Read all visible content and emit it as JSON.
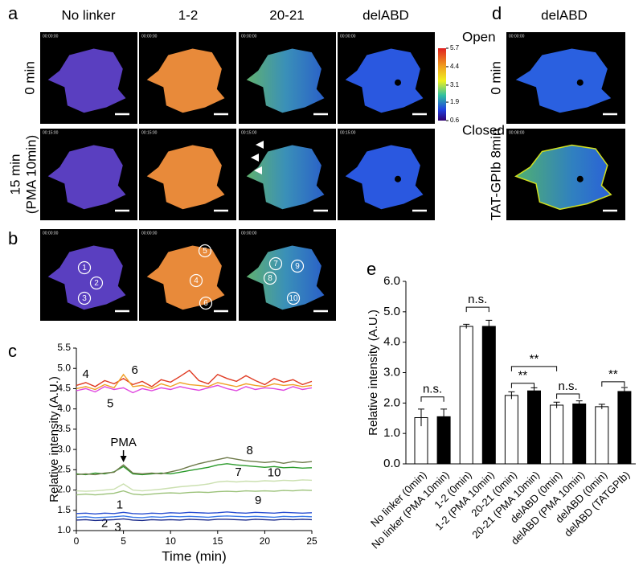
{
  "figure": {
    "panel_letters": [
      "a",
      "b",
      "c",
      "d",
      "e"
    ],
    "a": {
      "columns": [
        "No linker",
        "1-2",
        "20-21",
        "delABD"
      ],
      "rows": [
        "0 min",
        "15 min",
        "(PMA 10min)"
      ]
    },
    "colorbar": {
      "lim": [
        0.6,
        5.7
      ],
      "ticks": [
        5.7,
        4.4,
        3.1,
        1.9,
        0.6
      ],
      "top_label": "Open",
      "bottom_label": "Closed"
    },
    "d": {
      "column": "delABD",
      "rows": [
        "0 min",
        "TAT-GPIb 8min"
      ]
    },
    "timestamps": [
      "00:00:00",
      "00:00:00",
      "00:00:00",
      "00:00:00",
      "00:15:00",
      "00:15:00",
      "00:15:00",
      "00:15:00",
      "00:00:00",
      "00:00:00",
      "00:00:00",
      "00:00:00",
      "00:08:00"
    ]
  },
  "chart_data": [
    {
      "type": "line",
      "xlabel": "Time (min)",
      "ylabel": "Relative intensity (A.U.)",
      "x": [
        0,
        1,
        2,
        3,
        4,
        5,
        6,
        7,
        8,
        9,
        10,
        11,
        12,
        13,
        14,
        15,
        16,
        17,
        18,
        19,
        20,
        21,
        22,
        23,
        24,
        25
      ],
      "xlim": [
        0,
        25
      ],
      "xticks": [
        0,
        5,
        10,
        15,
        20,
        25
      ],
      "ylim": [
        1,
        5.5
      ],
      "yticks": [
        {
          "value": 1,
          "label": "1.0"
        },
        {
          "value": 1.5,
          "label": "1.5"
        },
        {
          "value": 2,
          "label": "2.0"
        },
        {
          "value": 2.5,
          "label": "2.5"
        },
        {
          "value": 3,
          "label": "3.0"
        },
        {
          "value": 3.5,
          "label": "3.5"
        },
        {
          "value": 4,
          "label": "4.0"
        },
        {
          "value": 4.5,
          "label": "4.5"
        },
        {
          "value": 5,
          "label": "5.0"
        },
        {
          "value": 5.5,
          "label": "5.5"
        }
      ],
      "annotations": [
        "PMA"
      ],
      "series": [
        {
          "name": "1",
          "color": "#2a4fd0",
          "values": [
            1.42,
            1.43,
            1.41,
            1.43,
            1.42,
            1.45,
            1.42,
            1.41,
            1.43,
            1.42,
            1.44,
            1.43,
            1.45,
            1.44,
            1.43,
            1.44,
            1.46,
            1.44,
            1.43,
            1.45,
            1.44,
            1.43,
            1.45,
            1.44,
            1.43,
            1.44
          ]
        },
        {
          "name": "2",
          "color": "#3a78e8",
          "values": [
            1.33,
            1.34,
            1.32,
            1.33,
            1.34,
            1.36,
            1.33,
            1.32,
            1.34,
            1.33,
            1.35,
            1.34,
            1.35,
            1.34,
            1.33,
            1.35,
            1.36,
            1.35,
            1.34,
            1.35,
            1.34,
            1.33,
            1.35,
            1.34,
            1.35,
            1.34
          ]
        },
        {
          "name": "3",
          "color": "#1a2a8a",
          "values": [
            1.26,
            1.27,
            1.25,
            1.26,
            1.27,
            1.29,
            1.26,
            1.25,
            1.27,
            1.26,
            1.27,
            1.26,
            1.28,
            1.27,
            1.26,
            1.28,
            1.28,
            1.27,
            1.26,
            1.28,
            1.27,
            1.26,
            1.28,
            1.27,
            1.28,
            1.27
          ]
        },
        {
          "name": "4",
          "color": "#e03a22",
          "values": [
            4.58,
            4.65,
            4.55,
            4.7,
            4.62,
            4.75,
            4.6,
            4.68,
            4.55,
            4.72,
            4.66,
            4.8,
            4.95,
            4.7,
            4.62,
            4.85,
            4.75,
            4.68,
            4.82,
            4.7,
            4.6,
            4.75,
            4.66,
            4.72,
            4.6,
            4.68
          ]
        },
        {
          "name": "5",
          "color": "#e048e0",
          "values": [
            4.45,
            4.5,
            4.42,
            4.55,
            4.48,
            4.52,
            4.4,
            4.5,
            4.45,
            4.52,
            4.48,
            4.55,
            4.5,
            4.46,
            4.52,
            4.58,
            4.5,
            4.45,
            4.55,
            4.48,
            4.52,
            4.5,
            4.46,
            4.55,
            4.48,
            4.52
          ]
        },
        {
          "name": "6",
          "color": "#f0a028",
          "values": [
            4.5,
            4.55,
            4.48,
            4.6,
            4.52,
            4.85,
            4.55,
            4.58,
            4.5,
            4.62,
            4.55,
            4.65,
            4.6,
            4.58,
            4.55,
            4.65,
            4.6,
            4.55,
            4.62,
            4.58,
            4.55,
            4.62,
            4.58,
            4.6,
            4.55,
            4.58
          ]
        },
        {
          "name": "7",
          "color": "#2a9a2a",
          "values": [
            2.4,
            2.38,
            2.42,
            2.4,
            2.45,
            2.58,
            2.4,
            2.38,
            2.4,
            2.42,
            2.4,
            2.44,
            2.48,
            2.52,
            2.56,
            2.62,
            2.65,
            2.62,
            2.6,
            2.58,
            2.56,
            2.58,
            2.55,
            2.56,
            2.54,
            2.55
          ]
        },
        {
          "name": "8",
          "color": "#6e7a4a",
          "values": [
            2.38,
            2.4,
            2.38,
            2.42,
            2.44,
            2.62,
            2.42,
            2.4,
            2.42,
            2.4,
            2.45,
            2.5,
            2.58,
            2.65,
            2.7,
            2.75,
            2.8,
            2.76,
            2.72,
            2.7,
            2.68,
            2.7,
            2.66,
            2.7,
            2.68,
            2.7
          ]
        },
        {
          "name": "9",
          "color": "#9cc27a",
          "values": [
            1.88,
            1.9,
            1.88,
            1.9,
            1.92,
            1.98,
            1.9,
            1.88,
            1.9,
            1.92,
            1.93,
            1.92,
            1.94,
            1.95,
            1.94,
            1.96,
            1.97,
            1.96,
            1.98,
            1.97,
            1.98,
            1.97,
            1.99,
            1.98,
            2.0,
            1.99
          ]
        },
        {
          "name": "10",
          "color": "#cbe0b0",
          "values": [
            1.98,
            1.97,
            1.98,
            2.0,
            2.02,
            2.15,
            2.0,
            1.98,
            2.0,
            2.02,
            2.05,
            2.08,
            2.1,
            2.12,
            2.15,
            2.2,
            2.22,
            2.2,
            2.22,
            2.21,
            2.23,
            2.22,
            2.24,
            2.23,
            2.25,
            2.24
          ]
        }
      ]
    },
    {
      "type": "bar",
      "ylabel": "Relative intensity (A.U.)",
      "categories": [
        "No linker (0min)",
        "No linker (PMA 10min)",
        "1-2 (0min)",
        "1-2 (PMA 10min)",
        "20-21 (0min)",
        "20-21 (PMA 10min)",
        "delABD (0min)",
        "delABD (PMA 10min)",
        "delABD (0min)",
        "delABD (TATGPIb)"
      ],
      "values": [
        1.52,
        1.55,
        4.52,
        4.52,
        2.25,
        2.4,
        1.93,
        1.97,
        1.88,
        2.38
      ],
      "errors": [
        0.28,
        0.25,
        0.07,
        0.2,
        0.12,
        0.1,
        0.1,
        0.1,
        0.08,
        0.13
      ],
      "colors": [
        "#ffffff",
        "#000000",
        "#ffffff",
        "#000000",
        "#ffffff",
        "#000000",
        "#ffffff",
        "#000000",
        "#ffffff",
        "#000000"
      ],
      "ylim": [
        0,
        6
      ],
      "yticks": [
        {
          "value": 0,
          "label": "0.0"
        },
        {
          "value": 1,
          "label": "1.0"
        },
        {
          "value": 2,
          "label": "2.0"
        },
        {
          "value": 3,
          "label": "3.0"
        },
        {
          "value": 4,
          "label": "4.0"
        },
        {
          "value": 5,
          "label": "5.0"
        },
        {
          "value": 6,
          "label": "6.0"
        }
      ],
      "annotations": [
        "n.s.",
        "n.s.",
        "**",
        "**",
        "n.s.",
        "**"
      ]
    }
  ]
}
